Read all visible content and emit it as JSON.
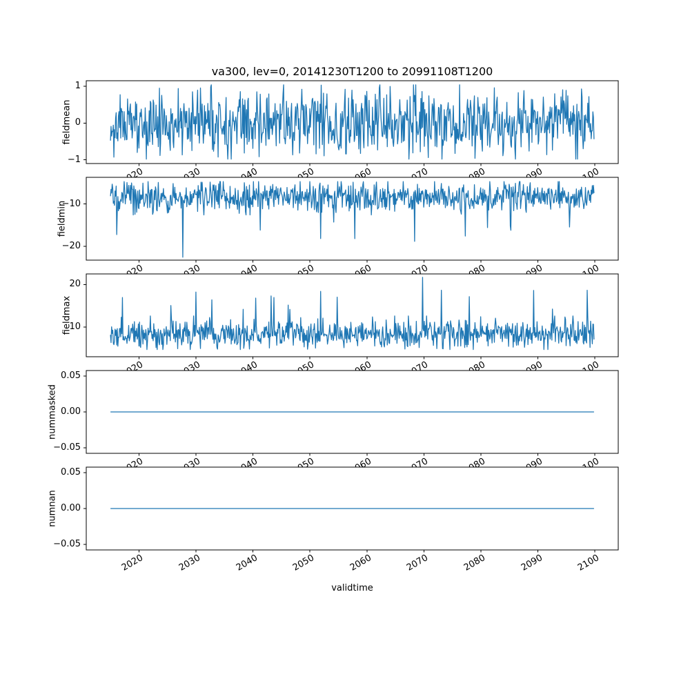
{
  "title": "va300, lev=0, 20141230T1200 to 20991108T1200",
  "xlabel": "validtime",
  "line_color": "#1f77b4",
  "axis_color": "#000000",
  "background_color": "#ffffff",
  "x_axis": {
    "min": 2010.75,
    "max": 2104.1,
    "data_start": 2015.0,
    "data_end": 2099.85,
    "ticks": [
      2020,
      2030,
      2040,
      2050,
      2060,
      2070,
      2080,
      2090,
      2100
    ],
    "tick_labels": [
      "2020",
      "2030",
      "2040",
      "2050",
      "2060",
      "2070",
      "2080",
      "2090",
      "2100"
    ],
    "tick_rotation_deg": 30
  },
  "chart_data": [
    {
      "type": "line",
      "ylabel": "fieldmean",
      "ylim": [
        -1.1,
        1.15
      ],
      "yticks": [
        {
          "value": 1,
          "label": "1"
        },
        {
          "value": 0,
          "label": "0"
        },
        {
          "value": -1,
          "label": "−1"
        }
      ],
      "series": [
        {
          "name": "fieldmean",
          "seed": 11,
          "n_points": 850,
          "mean": 0.0,
          "std": 0.42,
          "clip": [
            -0.98,
            1.04
          ],
          "spikes": [],
          "random_spikes": null,
          "constant": null
        }
      ]
    },
    {
      "type": "line",
      "ylabel": "fieldmin",
      "ylim": [
        -23.3,
        -3.7
      ],
      "yticks": [
        {
          "value": -10,
          "label": "−10"
        },
        {
          "value": -20,
          "label": "−20"
        }
      ],
      "series": [
        {
          "name": "fieldmin",
          "seed": 22,
          "n_points": 850,
          "mean": -8.3,
          "std": 1.8,
          "clip": [
            -12.6,
            -4.7
          ],
          "random_spikes": {
            "probability": 0.012,
            "direction": -1,
            "extra_min": 1.5,
            "extra_max": 6.5
          },
          "spikes": [
            {
              "frac": 0.15,
              "value": -22.6
            },
            {
              "frac": 0.435,
              "value": -18.2
            },
            {
              "frac": 0.31,
              "value": -16.2
            },
            {
              "frac": 0.78,
              "value": -15.6
            }
          ],
          "constant": null
        }
      ]
    },
    {
      "type": "line",
      "ylabel": "fieldmax",
      "ylim": [
        3.0,
        22.5
      ],
      "yticks": [
        {
          "value": 20,
          "label": "20"
        },
        {
          "value": 10,
          "label": "10"
        }
      ],
      "series": [
        {
          "name": "fieldmax",
          "seed": 33,
          "n_points": 850,
          "mean": 8.3,
          "std": 1.8,
          "clip": [
            4.7,
            12.6
          ],
          "random_spikes": {
            "probability": 0.012,
            "direction": 1,
            "extra_min": 1.5,
            "extra_max": 6.5
          },
          "spikes": [
            {
              "frac": 0.645,
              "value": 21.7
            },
            {
              "frac": 0.435,
              "value": 18.4
            },
            {
              "frac": 0.3,
              "value": 16.8
            },
            {
              "frac": 0.21,
              "value": 16.4
            }
          ],
          "constant": null
        }
      ]
    },
    {
      "type": "line",
      "ylabel": "nummasked",
      "ylim": [
        -0.0575,
        0.0575
      ],
      "yticks": [
        {
          "value": 0.05,
          "label": "0.05"
        },
        {
          "value": 0.0,
          "label": "0.00"
        },
        {
          "value": -0.05,
          "label": "−0.05"
        }
      ],
      "series": [
        {
          "name": "nummasked",
          "seed": 44,
          "n_points": 850,
          "constant": 0.0
        }
      ]
    },
    {
      "type": "line",
      "ylabel": "numnan",
      "ylim": [
        -0.0575,
        0.0575
      ],
      "yticks": [
        {
          "value": 0.05,
          "label": "0.05"
        },
        {
          "value": 0.0,
          "label": "0.00"
        },
        {
          "value": -0.05,
          "label": "−0.05"
        }
      ],
      "series": [
        {
          "name": "numnan",
          "seed": 55,
          "n_points": 850,
          "constant": 0.0
        }
      ]
    }
  ]
}
